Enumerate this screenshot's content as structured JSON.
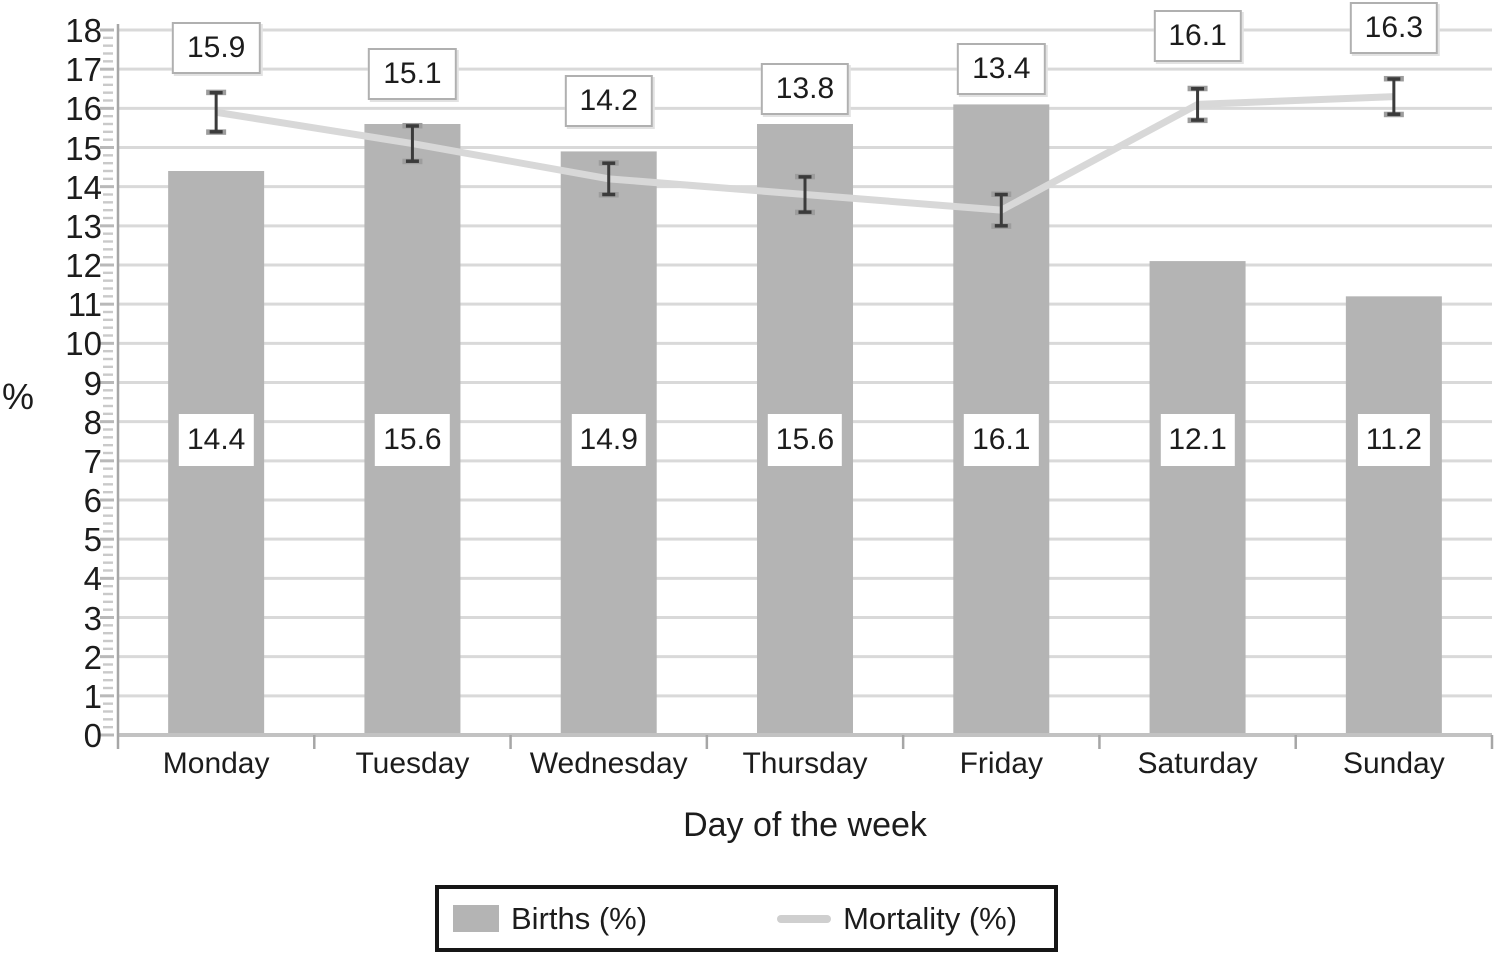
{
  "chart_data": {
    "type": "bar",
    "subtype": "bar+line combo with error bars",
    "categories": [
      "Monday",
      "Tuesday",
      "Wednesday",
      "Thursday",
      "Friday",
      "Saturday",
      "Sunday"
    ],
    "series": [
      {
        "name": "Births (%)",
        "type": "bar",
        "values": [
          14.4,
          15.6,
          14.9,
          15.6,
          16.1,
          12.1,
          11.2
        ],
        "color": "#b4b4b4"
      },
      {
        "name": "Mortality (%)",
        "type": "line",
        "values": [
          15.9,
          15.1,
          14.2,
          13.8,
          13.4,
          16.1,
          16.3
        ],
        "error": [
          0.5,
          0.45,
          0.4,
          0.45,
          0.4,
          0.4,
          0.45
        ],
        "color": "#d8d8d8"
      }
    ],
    "title": "",
    "xlabel": "Day of the week",
    "ylabel": "%",
    "ylim": [
      0,
      18
    ],
    "ytick_step": 1,
    "yminor_step": 0.2,
    "grid": true,
    "data_labels": true,
    "legend_position": "bottom",
    "colors": {
      "bar_fill": "#b4b4b4",
      "line": "#d8d8d8",
      "gridline": "#d9d9d9",
      "axis": "#a6a6a6",
      "error_bar": "#3b3b3b",
      "text": "#1c1c1c"
    }
  },
  "legend": {
    "births_label": "Births (%)",
    "mortality_label": "Mortality (%)"
  }
}
